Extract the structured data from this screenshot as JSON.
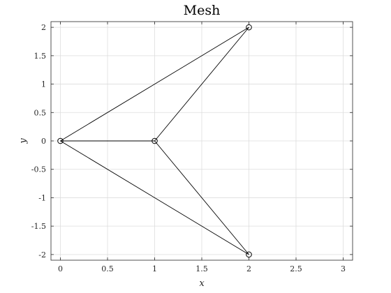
{
  "chart_data": {
    "type": "scatter",
    "title": "Mesh",
    "xlabel": "x",
    "ylabel": "y",
    "xlim": [
      -0.1,
      3.1
    ],
    "ylim": [
      -2.1,
      2.1
    ],
    "grid": true,
    "x_ticks": [
      0,
      0.5,
      1,
      1.5,
      2,
      2.5,
      3
    ],
    "x_tick_labels": [
      "0",
      "0.5",
      "1",
      "1.5",
      "2",
      "2.5",
      "3"
    ],
    "y_ticks": [
      -2,
      -1.5,
      -1,
      -0.5,
      0,
      0.5,
      1,
      1.5,
      2
    ],
    "y_tick_labels": [
      "-2",
      "-1.5",
      "-1",
      "-0.5",
      "0",
      "0.5",
      "1",
      "1.5",
      "2"
    ],
    "nodes": [
      {
        "x": 0,
        "y": 0
      },
      {
        "x": 1,
        "y": 0
      },
      {
        "x": 2,
        "y": 2
      },
      {
        "x": 2,
        "y": -2
      }
    ],
    "edges": [
      [
        0,
        2
      ],
      [
        0,
        1
      ],
      [
        0,
        3
      ],
      [
        1,
        2
      ],
      [
        1,
        3
      ]
    ],
    "colors": {
      "edge": "#000000",
      "grid": "#dddddd",
      "axis": "#262626",
      "background": "#ffffff"
    }
  }
}
